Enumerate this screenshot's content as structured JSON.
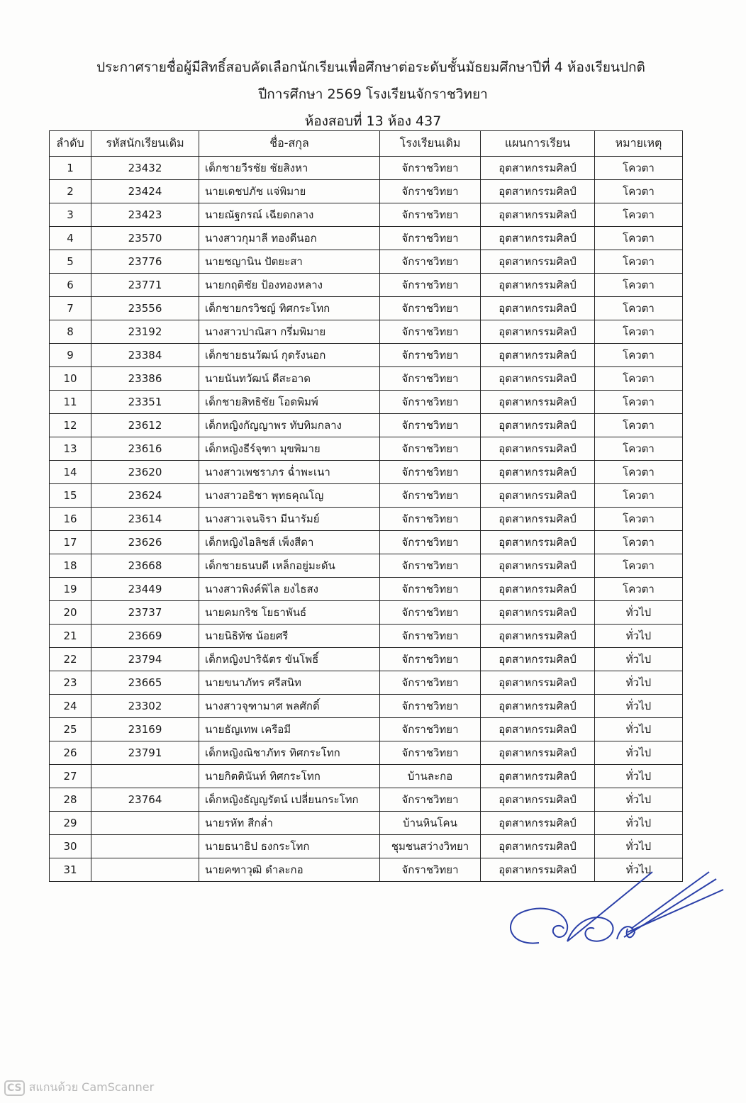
{
  "document": {
    "title_line1": "ประกาศรายชื่อผู้มีสิทธิ์สอบคัดเลือกนักเรียนเพื่อศึกษาต่อระดับชั้นมัธยมศึกษาปีที่ 4 ห้องเรียนปกติ",
    "title_line2": "ปีการศึกษา 2569 โรงเรียนจักราชวิทยา",
    "title_line3": "ห้องสอบที่ 13  ห้อง 437"
  },
  "table": {
    "headers": [
      "ลำดับ",
      "รหัสนักเรียนเดิม",
      "ชื่อ-สกุล",
      "โรงเรียนเดิม",
      "แผนการเรียน",
      "หมายเหตุ"
    ],
    "rows": [
      [
        "1",
        "23432",
        "เด็กชายวีรชัย ชัยสิงหา",
        "จักราชวิทยา",
        "อุตสาหกรรมศิลป์",
        "โควตา"
      ],
      [
        "2",
        "23424",
        "นายเดชปภัช แจ่พิมาย",
        "จักราชวิทยา",
        "อุตสาหกรรมศิลป์",
        "โควตา"
      ],
      [
        "3",
        "23423",
        "นายณัฐกรณ์ เฉียดกลาง",
        "จักราชวิทยา",
        "อุตสาหกรรมศิลป์",
        "โควตา"
      ],
      [
        "4",
        "23570",
        "นางสาวกุมาลี ทองดีนอก",
        "จักราชวิทยา",
        "อุตสาหกรรมศิลป์",
        "โควตา"
      ],
      [
        "5",
        "23776",
        "นายชญานิน ปัตยะสา",
        "จักราชวิทยา",
        "อุตสาหกรรมศิลป์",
        "โควตา"
      ],
      [
        "6",
        "23771",
        "นายกฤติชัย ป้องทองหลาง",
        "จักราชวิทยา",
        "อุตสาหกรรมศิลป์",
        "โควตา"
      ],
      [
        "7",
        "23556",
        "เด็กชายกรวิชญ์ ทิศกระโทก",
        "จักราชวิทยา",
        "อุตสาหกรรมศิลป์",
        "โควตา"
      ],
      [
        "8",
        "23192",
        "นางสาวปาณิสา กรึ่มพิมาย",
        "จักราชวิทยา",
        "อุตสาหกรรมศิลป์",
        "โควตา"
      ],
      [
        "9",
        "23384",
        "เด็กชายธนวัฒน์ กุดรังนอก",
        "จักราชวิทยา",
        "อุตสาหกรรมศิลป์",
        "โควตา"
      ],
      [
        "10",
        "23386",
        "นายนันทวัฒน์ ดีสะอาด",
        "จักราชวิทยา",
        "อุตสาหกรรมศิลป์",
        "โควตา"
      ],
      [
        "11",
        "23351",
        "เด็กชายสิทธิชัย โอดพิมพ์",
        "จักราชวิทยา",
        "อุตสาหกรรมศิลป์",
        "โควตา"
      ],
      [
        "12",
        "23612",
        "เด็กหญิงกัญญาพร ทับทิมกลาง",
        "จักราชวิทยา",
        "อุตสาหกรรมศิลป์",
        "โควตา"
      ],
      [
        "13",
        "23616",
        "เด็กหญิงธีร์จุฑา มุขพิมาย",
        "จักราชวิทยา",
        "อุตสาหกรรมศิลป์",
        "โควตา"
      ],
      [
        "14",
        "23620",
        "นางสาวเพชราภร ฉ่ำพะเนา",
        "จักราชวิทยา",
        "อุตสาหกรรมศิลป์",
        "โควตา"
      ],
      [
        "15",
        "23624",
        "นางสาวอธิชา พุทธคุณโญ",
        "จักราชวิทยา",
        "อุตสาหกรรมศิลป์",
        "โควตา"
      ],
      [
        "16",
        "23614",
        "นางสาวเจนจิรา มีนารัมย์",
        "จักราชวิทยา",
        "อุตสาหกรรมศิลป์",
        "โควตา"
      ],
      [
        "17",
        "23626",
        "เด็กหญิงไอลิซส์ เพ็งสีดา",
        "จักราชวิทยา",
        "อุตสาหกรรมศิลป์",
        "โควตา"
      ],
      [
        "18",
        "23668",
        "เด็กชายธนบดี เหล็กอยู่มะดัน",
        "จักราชวิทยา",
        "อุตสาหกรรมศิลป์",
        "โควตา"
      ],
      [
        "19",
        "23449",
        "นางสาวพิงค์พิไล ยงไธสง",
        "จักราชวิทยา",
        "อุตสาหกรรมศิลป์",
        "โควตา"
      ],
      [
        "20",
        "23737",
        "นายคมกริช โยธาพันธ์",
        "จักราชวิทยา",
        "อุตสาหกรรมศิลป์",
        "ทั่วไป"
      ],
      [
        "21",
        "23669",
        "นายนิธิทัช น้อยศรี",
        "จักราชวิทยา",
        "อุตสาหกรรมศิลป์",
        "ทั่วไป"
      ],
      [
        "22",
        "23794",
        "เด็กหญิงปาริฉัตร ขันโพธิ์",
        "จักราชวิทยา",
        "อุตสาหกรรมศิลป์",
        "ทั่วไป"
      ],
      [
        "23",
        "23665",
        "นายขนาภัทร ศรีสนิท",
        "จักราชวิทยา",
        "อุตสาหกรรมศิลป์",
        "ทั่วไป"
      ],
      [
        "24",
        "23302",
        "นางสาวจุฑามาศ พลศักดิ์",
        "จักราชวิทยา",
        "อุตสาหกรรมศิลป์",
        "ทั่วไป"
      ],
      [
        "25",
        "23169",
        "นายธัญเทพ เครือมี",
        "จักราชวิทยา",
        "อุตสาหกรรมศิลป์",
        "ทั่วไป"
      ],
      [
        "26",
        "23791",
        "เด็กหญิงณิชาภัทร ทิศกระโทก",
        "จักราชวิทยา",
        "อุตสาหกรรมศิลป์",
        "ทั่วไป"
      ],
      [
        "27",
        "",
        "นายกิตตินันท์ ทิศกระโทก",
        "บ้านละกอ",
        "อุตสาหกรรมศิลป์",
        "ทั่วไป"
      ],
      [
        "28",
        "23764",
        "เด็กหญิงธัญญรัตน์ เปลี่ยนกระโทก",
        "จักราชวิทยา",
        "อุตสาหกรรมศิลป์",
        "ทั่วไป"
      ],
      [
        "29",
        "",
        "นายรหัท สีกล่ำ",
        "บ้านหินโคน",
        "อุตสาหกรรมศิลป์",
        "ทั่วไป"
      ],
      [
        "30",
        "",
        "นายธนาธิป ธงกระโทก",
        "ชุมชนสว่างวิทยา",
        "อุตสาหกรรมศิลป์",
        "ทั่วไป"
      ],
      [
        "31",
        "",
        "นายคฑาวุฒิ ดำละกอ",
        "จักราชวิทยา",
        "อุตสาหกรรมศิลป์",
        "ทั่วไป"
      ]
    ]
  },
  "signature_color": "#2a3fa8",
  "footer": {
    "logo": "CS",
    "text": "สแกนด้วย CamScanner"
  }
}
